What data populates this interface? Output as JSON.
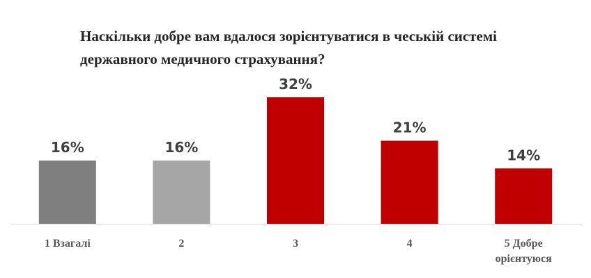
{
  "chart_data": {
    "type": "bar",
    "title": "Наскільки добре вам вдалося зорієнтуватися в чеській системі державного медичного страхування?",
    "categories": [
      "1 Взагалі",
      "2",
      "3",
      "4",
      "5 Добре орієнтуюся"
    ],
    "values": [
      16,
      16,
      32,
      21,
      14
    ],
    "value_labels": [
      "16%",
      "16%",
      "32%",
      "21%",
      "14%"
    ],
    "colors": [
      "#7f7f7f",
      "#a6a6a6",
      "#c00000",
      "#c00000",
      "#c00000"
    ]
  }
}
